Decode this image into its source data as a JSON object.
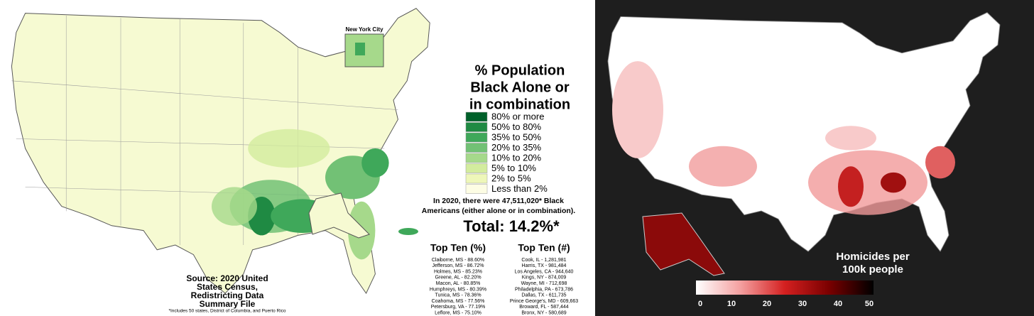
{
  "left_map": {
    "inset_label": "New York City",
    "title_lines": [
      "% Population",
      "Black Alone or",
      "in combination"
    ],
    "legend": [
      {
        "label": "80% or more",
        "color": "#00602a"
      },
      {
        "label": "50% to 80%",
        "color": "#1f8a43"
      },
      {
        "label": "35% to 50%",
        "color": "#3fa85a"
      },
      {
        "label": "20% to 35%",
        "color": "#72c175"
      },
      {
        "label": "10% to 20%",
        "color": "#a6d98b"
      },
      {
        "label": "5% to 10%",
        "color": "#d3ec9e"
      },
      {
        "label": "2% to 5%",
        "color": "#eef7b9"
      },
      {
        "label": "Less than 2%",
        "color": "#fdfde4"
      }
    ],
    "summary_lines": [
      "In 2020, there were 47,511,020* Black",
      "Americans (either alone or in combination)."
    ],
    "total": "Total: 14.2%*",
    "top_pct": {
      "title": "Top Ten (%)",
      "items": [
        "Claiborne, MS - 88.60%",
        "Jefferson, MS - 86.72%",
        "Holmes, MS - 85.23%",
        "Greene, AL - 82.20%",
        "Macon, AL - 80.85%",
        "Humphreys, MS - 80.39%",
        "Tunica, MS - 78.36%",
        "Coahoma, MS - 77.56%",
        "Petersburg, VA - 77.19%",
        "Leflore, MS - 75.10%"
      ]
    },
    "top_num": {
      "title": "Top Ten (#)",
      "items": [
        "Cook, IL - 1,281,981",
        "Harris, TX - 981,484",
        "Los Angeles, CA - 944,640",
        "Kings, NY - 874,009",
        "Wayne, MI - 712,698",
        "Philadelphia, PA - 673,786",
        "Dallas, TX - 611,735",
        "Prince George's, MD - 609,663",
        "Broward, FL - 587,444",
        "Bronx, NY - 580,689"
      ]
    },
    "source_lines": [
      "Source: 2020 United",
      "States Census,",
      "Redistricting Data",
      "Summary File"
    ],
    "footnote": "*Includes 50 states, District of Columbia, and Puerto Rico"
  },
  "right_map": {
    "legend_title_lines": [
      "Homicides per",
      "100k people"
    ],
    "colorbar": {
      "range": [
        0,
        50
      ],
      "ticks": [
        0,
        10,
        20,
        30,
        40,
        50
      ],
      "colors": [
        "#ffffff",
        "#f4a0a0",
        "#d42020",
        "#7a0000",
        "#000000"
      ]
    }
  }
}
